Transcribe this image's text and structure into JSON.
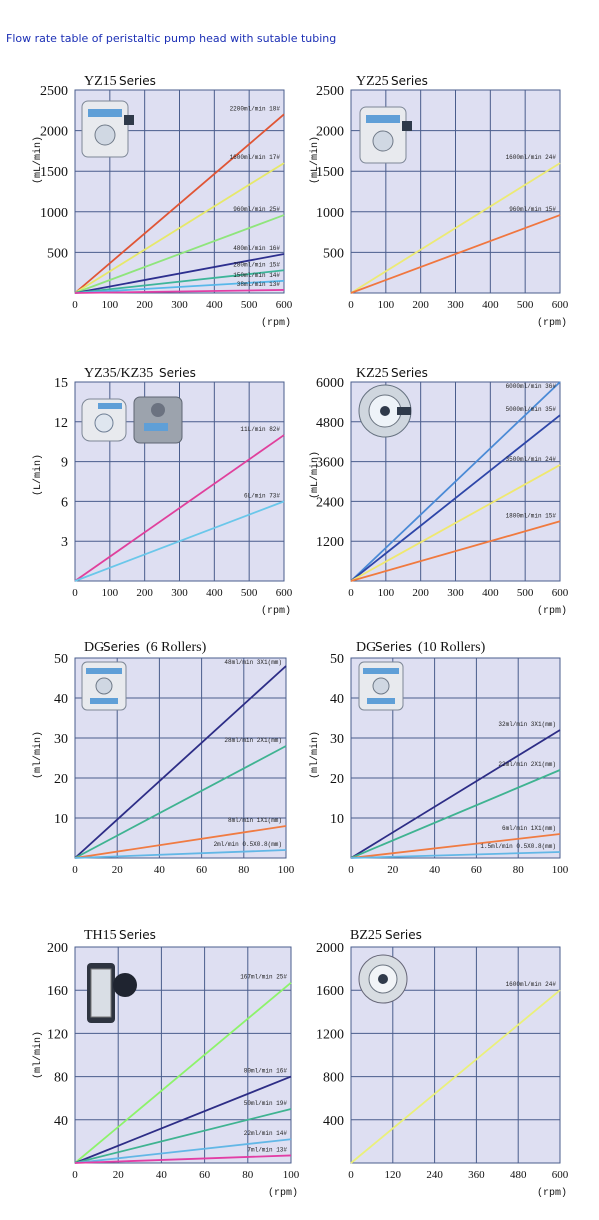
{
  "page_title": "Flow rate table of peristaltic pump head with sutable tubing",
  "charts": [
    {
      "id": "yz15",
      "title_main": "YZ15",
      "title_suffix": "Series",
      "ylabel": "(mL/min)",
      "xunit": "(rpm)",
      "xlim": [
        0,
        600
      ],
      "ylim": [
        0,
        2500
      ],
      "xticks": [
        0,
        100,
        200,
        300,
        400,
        500,
        600
      ],
      "yticks": [
        500,
        1000,
        1500,
        2000,
        2500
      ],
      "pump": "YZ15 pump head",
      "series": [
        {
          "label": "2200ml/min 18#",
          "color": "#e05535",
          "values": [
            [
              0,
              0
            ],
            [
              600,
              2200
            ]
          ]
        },
        {
          "label": "1600ml/min 17#",
          "color": "#e6e86a",
          "values": [
            [
              0,
              0
            ],
            [
              600,
              1600
            ]
          ]
        },
        {
          "label": "960ml/min 25#",
          "color": "#8fe57c",
          "values": [
            [
              0,
              0
            ],
            [
              600,
              960
            ]
          ]
        },
        {
          "label": "480ml/min 16#",
          "color": "#2d2f8f",
          "values": [
            [
              0,
              0
            ],
            [
              600,
              480
            ]
          ]
        },
        {
          "label": "280ml/min 15#",
          "color": "#3db59a",
          "values": [
            [
              0,
              0
            ],
            [
              600,
              280
            ]
          ]
        },
        {
          "label": "150ml/min 14#",
          "color": "#58b8ea",
          "values": [
            [
              0,
              0
            ],
            [
              600,
              150
            ]
          ]
        },
        {
          "label": "38ml/min 13#",
          "color": "#e23ea5",
          "values": [
            [
              0,
              0
            ],
            [
              600,
              38
            ]
          ]
        }
      ]
    },
    {
      "id": "yz25",
      "title_main": "YZ25",
      "title_suffix": "Series",
      "ylabel": "(mL/min)",
      "xunit": "(rpm)",
      "xlim": [
        0,
        600
      ],
      "ylim": [
        0,
        2500
      ],
      "xticks": [
        0,
        100,
        200,
        300,
        400,
        500,
        600
      ],
      "yticks": [
        500,
        1000,
        1500,
        2000,
        2500
      ],
      "pump": "YZ25 pump head",
      "series": [
        {
          "label": "1600ml/min 24#",
          "color": "#ecea74",
          "values": [
            [
              0,
              0
            ],
            [
              600,
              1600
            ]
          ]
        },
        {
          "label": "960ml/min 15#",
          "color": "#f0763f",
          "values": [
            [
              0,
              0
            ],
            [
              600,
              960
            ]
          ]
        }
      ]
    },
    {
      "id": "yz35",
      "title_main": "YZ35/KZ35",
      "title_suffix": "Series",
      "ylabel": "(L/min)",
      "xunit": "(rpm)",
      "xlim": [
        0,
        600
      ],
      "ylim": [
        0,
        15
      ],
      "xticks": [
        0,
        100,
        200,
        300,
        400,
        500,
        600
      ],
      "yticks": [
        3,
        6,
        9,
        12,
        15
      ],
      "pump": "YZ35/KZ35 pump heads",
      "series": [
        {
          "label": "11L/min 82#",
          "color": "#e0409c",
          "values": [
            [
              0,
              0
            ],
            [
              600,
              11
            ]
          ]
        },
        {
          "label": "6L/min 73#",
          "color": "#6ac7ea",
          "values": [
            [
              0,
              0
            ],
            [
              600,
              6
            ]
          ]
        }
      ]
    },
    {
      "id": "kz25",
      "title_main": "KZ25",
      "title_suffix": "Series",
      "ylabel": "(mL/min)",
      "xunit": "(rpm)",
      "xlim": [
        0,
        600
      ],
      "ylim": [
        0,
        6000
      ],
      "xticks": [
        0,
        100,
        200,
        300,
        400,
        500,
        600
      ],
      "yticks": [
        1200,
        2400,
        3600,
        4800,
        6000
      ],
      "pump": "KZ25 pump head",
      "series": [
        {
          "label": "6000ml/min 36#",
          "color": "#4a8ad6",
          "values": [
            [
              0,
              0
            ],
            [
              600,
              6000
            ]
          ]
        },
        {
          "label": "5000ml/min 35#",
          "color": "#2e46a8",
          "values": [
            [
              0,
              0
            ],
            [
              600,
              5000
            ]
          ]
        },
        {
          "label": "3500ml/min 24#",
          "color": "#efe86f",
          "values": [
            [
              0,
              0
            ],
            [
              600,
              3500
            ]
          ]
        },
        {
          "label": "1800ml/min 15#",
          "color": "#f07a3f",
          "values": [
            [
              0,
              0
            ],
            [
              600,
              1800
            ]
          ]
        }
      ]
    },
    {
      "id": "dg6",
      "title_main": "DG",
      "title_suffix": "Series",
      "title_extra": "(6 Rollers)",
      "ylabel": "(ml/min)",
      "xunit": "",
      "xlim": [
        0,
        100
      ],
      "ylim": [
        0,
        50
      ],
      "xticks": [
        0,
        20,
        40,
        60,
        80,
        100
      ],
      "yticks": [
        10,
        20,
        30,
        40,
        50
      ],
      "pump": "DG 6 rollers pump head",
      "series": [
        {
          "label": "48ml/min 3X1(mm)",
          "color": "#2d2d86",
          "values": [
            [
              0,
              0
            ],
            [
              100,
              48
            ]
          ]
        },
        {
          "label": "28ml/min 2X1(mm)",
          "color": "#3fb391",
          "values": [
            [
              0,
              0
            ],
            [
              100,
              28
            ]
          ]
        },
        {
          "label": "8ml/min 1X1(mm)",
          "color": "#f07b42",
          "values": [
            [
              0,
              0
            ],
            [
              100,
              8
            ]
          ]
        },
        {
          "label": "2ml/min 0.5X0.8(mm)",
          "color": "#62b7e6",
          "values": [
            [
              0,
              0
            ],
            [
              100,
              2
            ]
          ]
        }
      ]
    },
    {
      "id": "dg10",
      "title_main": "DG",
      "title_suffix": "Series",
      "title_extra": "(10 Rollers)",
      "ylabel": "(ml/min)",
      "xunit": "",
      "xlim": [
        0,
        100
      ],
      "ylim": [
        0,
        50
      ],
      "xticks": [
        0,
        20,
        40,
        60,
        80,
        100
      ],
      "yticks": [
        10,
        20,
        30,
        40,
        50
      ],
      "pump": "DG 10 rollers pump head",
      "series": [
        {
          "label": "32ml/min 3X1(mm)",
          "color": "#2d2d86",
          "values": [
            [
              0,
              0
            ],
            [
              100,
              32
            ]
          ]
        },
        {
          "label": "22ml/min 2X1(mm)",
          "color": "#3fb391",
          "values": [
            [
              0,
              0
            ],
            [
              100,
              22
            ]
          ]
        },
        {
          "label": "6ml/min 1X1(mm)",
          "color": "#f07b42",
          "values": [
            [
              0,
              0
            ],
            [
              100,
              6
            ]
          ]
        },
        {
          "label": "1.5ml/min 0.5X0.8(mm)",
          "color": "#62b7e6",
          "values": [
            [
              0,
              0
            ],
            [
              100,
              1.5
            ]
          ]
        }
      ]
    },
    {
      "id": "th15",
      "title_main": "TH15",
      "title_suffix": "Series",
      "ylabel": "(ml/min)",
      "xunit": "(rpm)",
      "xlim": [
        0,
        100
      ],
      "ylim": [
        0,
        200
      ],
      "xticks": [
        0,
        20,
        40,
        60,
        80,
        100
      ],
      "yticks": [
        40,
        80,
        120,
        160,
        200
      ],
      "pump": "TH15 pump head",
      "series": [
        {
          "label": "167ml/min 25#",
          "color": "#8df36b",
          "values": [
            [
              0,
              0
            ],
            [
              100,
              167
            ]
          ]
        },
        {
          "label": "80ml/min 16#",
          "color": "#2d2d86",
          "values": [
            [
              0,
              0
            ],
            [
              100,
              80
            ]
          ]
        },
        {
          "label": "50ml/min 19#",
          "color": "#3fb391",
          "values": [
            [
              0,
              0
            ],
            [
              100,
              50
            ]
          ]
        },
        {
          "label": "22ml/min 14#",
          "color": "#62b7e6",
          "values": [
            [
              0,
              0
            ],
            [
              100,
              22
            ]
          ]
        },
        {
          "label": "7ml/min 13#",
          "color": "#e23ea5",
          "values": [
            [
              0,
              0
            ],
            [
              100,
              7
            ]
          ]
        }
      ]
    },
    {
      "id": "bz25",
      "title_main": "BZ25",
      "title_suffix": "Series",
      "ylabel": "",
      "xunit": "(rpm)",
      "xlim": [
        0,
        600
      ],
      "ylim": [
        0,
        2000
      ],
      "xticks": [
        0,
        120,
        240,
        360,
        480,
        600
      ],
      "yticks": [
        400,
        800,
        1200,
        1600,
        2000
      ],
      "pump": "BZ25 pump head",
      "series": [
        {
          "label": "1600ml/min 24#",
          "color": "#eaf07a",
          "values": [
            [
              0,
              0
            ],
            [
              600,
              1600
            ]
          ]
        }
      ]
    }
  ],
  "chart_data": [
    {
      "type": "line",
      "title": "YZ15 Series",
      "xlabel": "rpm",
      "ylabel": "mL/min",
      "xlim": [
        0,
        600
      ],
      "ylim": [
        0,
        2500
      ],
      "grid": true,
      "series": [
        {
          "name": "2200ml/min 18#",
          "x": [
            0,
            600
          ],
          "y": [
            0,
            2200
          ]
        },
        {
          "name": "1600ml/min 17#",
          "x": [
            0,
            600
          ],
          "y": [
            0,
            1600
          ]
        },
        {
          "name": "960ml/min 25#",
          "x": [
            0,
            600
          ],
          "y": [
            0,
            960
          ]
        },
        {
          "name": "480ml/min 16#",
          "x": [
            0,
            600
          ],
          "y": [
            0,
            480
          ]
        },
        {
          "name": "280ml/min 15#",
          "x": [
            0,
            600
          ],
          "y": [
            0,
            280
          ]
        },
        {
          "name": "150ml/min 14#",
          "x": [
            0,
            600
          ],
          "y": [
            0,
            150
          ]
        },
        {
          "name": "38ml/min 13#",
          "x": [
            0,
            600
          ],
          "y": [
            0,
            38
          ]
        }
      ]
    },
    {
      "type": "line",
      "title": "YZ25 Series",
      "xlabel": "rpm",
      "ylabel": "mL/min",
      "xlim": [
        0,
        600
      ],
      "ylim": [
        0,
        2500
      ],
      "grid": true,
      "series": [
        {
          "name": "1600ml/min 24#",
          "x": [
            0,
            600
          ],
          "y": [
            0,
            1600
          ]
        },
        {
          "name": "960ml/min 15#",
          "x": [
            0,
            600
          ],
          "y": [
            0,
            960
          ]
        }
      ]
    },
    {
      "type": "line",
      "title": "YZ35/KZ35 Series",
      "xlabel": "rpm",
      "ylabel": "L/min",
      "xlim": [
        0,
        600
      ],
      "ylim": [
        0,
        15
      ],
      "grid": true,
      "series": [
        {
          "name": "11L/min 82#",
          "x": [
            0,
            600
          ],
          "y": [
            0,
            11
          ]
        },
        {
          "name": "6L/min 73#",
          "x": [
            0,
            600
          ],
          "y": [
            0,
            6
          ]
        }
      ]
    },
    {
      "type": "line",
      "title": "KZ25 Series",
      "xlabel": "rpm",
      "ylabel": "mL/min",
      "xlim": [
        0,
        600
      ],
      "ylim": [
        0,
        6000
      ],
      "grid": true,
      "series": [
        {
          "name": "6000ml/min 36#",
          "x": [
            0,
            600
          ],
          "y": [
            0,
            6000
          ]
        },
        {
          "name": "5000ml/min 35#",
          "x": [
            0,
            600
          ],
          "y": [
            0,
            5000
          ]
        },
        {
          "name": "3500ml/min 24#",
          "x": [
            0,
            600
          ],
          "y": [
            0,
            3500
          ]
        },
        {
          "name": "1800ml/min 15#",
          "x": [
            0,
            600
          ],
          "y": [
            0,
            1800
          ]
        }
      ]
    },
    {
      "type": "line",
      "title": "DG Series (6 Rollers)",
      "xlabel": "",
      "ylabel": "ml/min",
      "xlim": [
        0,
        100
      ],
      "ylim": [
        0,
        50
      ],
      "grid": true,
      "series": [
        {
          "name": "48ml/min 3X1(mm)",
          "x": [
            0,
            100
          ],
          "y": [
            0,
            48
          ]
        },
        {
          "name": "28ml/min 2X1(mm)",
          "x": [
            0,
            100
          ],
          "y": [
            0,
            28
          ]
        },
        {
          "name": "8ml/min 1X1(mm)",
          "x": [
            0,
            100
          ],
          "y": [
            0,
            8
          ]
        },
        {
          "name": "2ml/min 0.5X0.8(mm)",
          "x": [
            0,
            100
          ],
          "y": [
            0,
            2
          ]
        }
      ]
    },
    {
      "type": "line",
      "title": "DG Series (10 Rollers)",
      "xlabel": "",
      "ylabel": "ml/min",
      "xlim": [
        0,
        100
      ],
      "ylim": [
        0,
        50
      ],
      "grid": true,
      "series": [
        {
          "name": "32ml/min 3X1(mm)",
          "x": [
            0,
            100
          ],
          "y": [
            0,
            32
          ]
        },
        {
          "name": "22ml/min 2X1(mm)",
          "x": [
            0,
            100
          ],
          "y": [
            0,
            22
          ]
        },
        {
          "name": "6ml/min 1X1(mm)",
          "x": [
            0,
            100
          ],
          "y": [
            0,
            6
          ]
        },
        {
          "name": "1.5ml/min 0.5X0.8(mm)",
          "x": [
            0,
            100
          ],
          "y": [
            0,
            1.5
          ]
        }
      ]
    },
    {
      "type": "line",
      "title": "TH15 Series",
      "xlabel": "rpm",
      "ylabel": "ml/min",
      "xlim": [
        0,
        100
      ],
      "ylim": [
        0,
        200
      ],
      "grid": true,
      "series": [
        {
          "name": "167ml/min 25#",
          "x": [
            0,
            100
          ],
          "y": [
            0,
            167
          ]
        },
        {
          "name": "80ml/min 16#",
          "x": [
            0,
            100
          ],
          "y": [
            0,
            80
          ]
        },
        {
          "name": "50ml/min 19#",
          "x": [
            0,
            100
          ],
          "y": [
            0,
            50
          ]
        },
        {
          "name": "22ml/min 14#",
          "x": [
            0,
            100
          ],
          "y": [
            0,
            22
          ]
        },
        {
          "name": "7ml/min 13#",
          "x": [
            0,
            100
          ],
          "y": [
            0,
            7
          ]
        }
      ]
    },
    {
      "type": "line",
      "title": "BZ25 Series",
      "xlabel": "rpm",
      "ylabel": "",
      "xlim": [
        0,
        600
      ],
      "ylim": [
        0,
        2000
      ],
      "grid": true,
      "series": [
        {
          "name": "1600ml/min 24#",
          "x": [
            0,
            600
          ],
          "y": [
            0,
            1600
          ]
        }
      ]
    }
  ]
}
